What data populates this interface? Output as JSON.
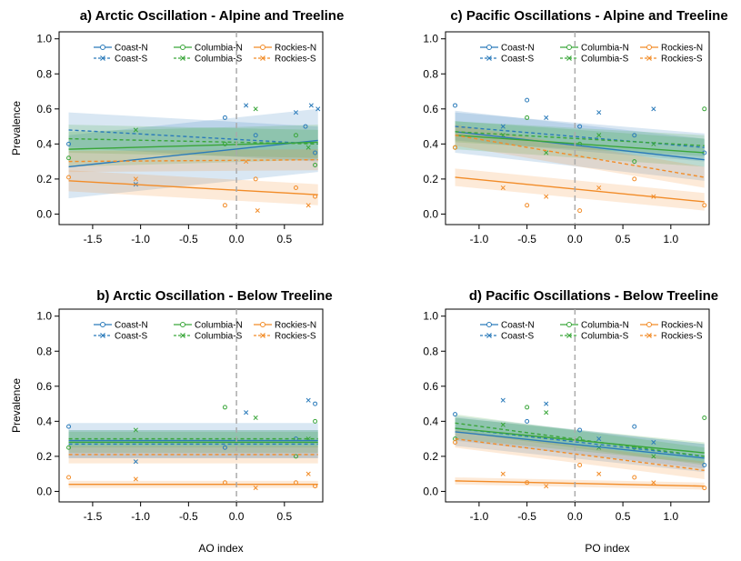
{
  "colors": {
    "coast": "#2b7bba",
    "columbia": "#3aa63a",
    "rockies": "#f28c28"
  },
  "legend": [
    {
      "key": "coast",
      "label_n": "Coast-N",
      "label_s": "Coast-S"
    },
    {
      "key": "columbia",
      "label_n": "Columbia-N",
      "label_s": "Columbia-S"
    },
    {
      "key": "rockies",
      "label_n": "Rockies-N",
      "label_s": "Rockies-S"
    }
  ],
  "chart_data": [
    {
      "type": "scatter",
      "title": "a) Arctic Oscillation - Alpine and Treeline",
      "xlabel": "",
      "ylabel": "Prevalence",
      "xlim": [
        -1.85,
        0.9
      ],
      "ylim": [
        0,
        1
      ],
      "xticks": [
        "-1.5",
        "-1.0",
        "-0.5",
        "0.0",
        "0.5"
      ],
      "yticks": [
        "0.0",
        "0.2",
        "0.4",
        "0.6",
        "0.8",
        "1.0"
      ],
      "vline": 0,
      "lines": [
        {
          "series": "coast",
          "kind": "N",
          "x": [
            -1.75,
            0.85
          ],
          "y": [
            0.27,
            0.42
          ],
          "band": 0.18
        },
        {
          "series": "coast",
          "kind": "S",
          "x": [
            -1.75,
            0.85
          ],
          "y": [
            0.48,
            0.4
          ],
          "band": 0.1
        },
        {
          "series": "columbia",
          "kind": "N",
          "x": [
            -1.75,
            0.85
          ],
          "y": [
            0.37,
            0.41
          ],
          "band": 0.1
        },
        {
          "series": "columbia",
          "kind": "S",
          "x": [
            -1.75,
            0.85
          ],
          "y": [
            0.43,
            0.4
          ],
          "band": 0.08
        },
        {
          "series": "rockies",
          "kind": "N",
          "x": [
            -1.75,
            0.85
          ],
          "y": [
            0.19,
            0.11
          ],
          "band": 0.06
        },
        {
          "series": "rockies",
          "kind": "S",
          "x": [
            -1.75,
            0.85
          ],
          "y": [
            0.3,
            0.31
          ],
          "band": 0.06
        }
      ],
      "points": [
        {
          "series": "coast",
          "x": [
            -1.75,
            -1.05,
            -0.12,
            0.1,
            0.2,
            0.62,
            0.72,
            0.78,
            0.82,
            0.85
          ],
          "y": [
            0.4,
            0.17,
            0.55,
            0.62,
            0.45,
            0.58,
            0.5,
            0.62,
            0.35,
            0.6
          ]
        },
        {
          "series": "columbia",
          "x": [
            -1.75,
            -1.05,
            -0.12,
            0.2,
            0.62,
            0.75,
            0.82
          ],
          "y": [
            0.32,
            0.48,
            0.4,
            0.6,
            0.45,
            0.38,
            0.28
          ]
        },
        {
          "series": "rockies",
          "x": [
            -1.75,
            -1.05,
            -0.12,
            0.1,
            0.2,
            0.22,
            0.62,
            0.75,
            0.82
          ],
          "y": [
            0.21,
            0.2,
            0.05,
            0.3,
            0.2,
            0.02,
            0.15,
            0.05,
            0.1
          ]
        }
      ]
    },
    {
      "type": "scatter",
      "title": "c) Pacific Oscillations - Alpine and Treeline",
      "xlabel": "",
      "ylabel": "",
      "xlim": [
        -1.35,
        1.4
      ],
      "ylim": [
        0,
        1
      ],
      "xticks": [
        "-1.0",
        "-0.5",
        "0.0",
        "0.5",
        "1.0"
      ],
      "yticks": [
        "0.0",
        "0.2",
        "0.4",
        "0.6",
        "0.8",
        "1.0"
      ],
      "vline": 0,
      "lines": [
        {
          "series": "coast",
          "kind": "N",
          "x": [
            -1.25,
            1.35
          ],
          "y": [
            0.47,
            0.31
          ],
          "band": 0.12
        },
        {
          "series": "coast",
          "kind": "S",
          "x": [
            -1.25,
            1.35
          ],
          "y": [
            0.5,
            0.38
          ],
          "band": 0.08
        },
        {
          "series": "columbia",
          "kind": "N",
          "x": [
            -1.25,
            1.35
          ],
          "y": [
            0.45,
            0.35
          ],
          "band": 0.08
        },
        {
          "series": "columbia",
          "kind": "S",
          "x": [
            -1.25,
            1.35
          ],
          "y": [
            0.47,
            0.39
          ],
          "band": 0.06
        },
        {
          "series": "rockies",
          "kind": "N",
          "x": [
            -1.25,
            1.35
          ],
          "y": [
            0.21,
            0.07
          ],
          "band": 0.05
        },
        {
          "series": "rockies",
          "kind": "S",
          "x": [
            -1.25,
            1.35
          ],
          "y": [
            0.45,
            0.21
          ],
          "band": 0.06
        }
      ],
      "points": [
        {
          "series": "coast",
          "x": [
            -1.25,
            -0.75,
            -0.5,
            -0.3,
            0.05,
            0.25,
            0.62,
            0.82,
            1.35
          ],
          "y": [
            0.62,
            0.5,
            0.65,
            0.55,
            0.5,
            0.58,
            0.45,
            0.6,
            0.35
          ]
        },
        {
          "series": "columbia",
          "x": [
            -1.25,
            -0.75,
            -0.5,
            -0.3,
            0.05,
            0.25,
            0.62,
            0.82,
            1.35
          ],
          "y": [
            0.38,
            0.45,
            0.55,
            0.35,
            0.4,
            0.45,
            0.3,
            0.4,
            0.6
          ]
        },
        {
          "series": "rockies",
          "x": [
            -1.25,
            -0.75,
            -0.5,
            -0.3,
            0.05,
            0.25,
            0.62,
            0.82,
            1.35
          ],
          "y": [
            0.38,
            0.15,
            0.05,
            0.1,
            0.02,
            0.15,
            0.2,
            0.1,
            0.05
          ]
        }
      ]
    },
    {
      "type": "scatter",
      "title": "b) Arctic Oscillation - Below Treeline",
      "xlabel": "AO index",
      "ylabel": "Prevalence",
      "xlim": [
        -1.85,
        0.9
      ],
      "ylim": [
        0,
        1
      ],
      "xticks": [
        "-1.5",
        "-1.0",
        "-0.5",
        "0.0",
        "0.5"
      ],
      "yticks": [
        "0.0",
        "0.2",
        "0.4",
        "0.6",
        "0.8",
        "1.0"
      ],
      "vline": 0,
      "lines": [
        {
          "series": "coast",
          "kind": "N",
          "x": [
            -1.75,
            0.85
          ],
          "y": [
            0.29,
            0.29
          ],
          "band": 0.1
        },
        {
          "series": "coast",
          "kind": "S",
          "x": [
            -1.75,
            0.85
          ],
          "y": [
            0.27,
            0.27
          ],
          "band": 0.08
        },
        {
          "series": "columbia",
          "kind": "N",
          "x": [
            -1.75,
            0.85
          ],
          "y": [
            0.28,
            0.28
          ],
          "band": 0.06
        },
        {
          "series": "columbia",
          "kind": "S",
          "x": [
            -1.75,
            0.85
          ],
          "y": [
            0.3,
            0.3
          ],
          "band": 0.05
        },
        {
          "series": "rockies",
          "kind": "N",
          "x": [
            -1.75,
            0.85
          ],
          "y": [
            0.04,
            0.04
          ],
          "band": 0.02
        },
        {
          "series": "rockies",
          "kind": "S",
          "x": [
            -1.75,
            0.85
          ],
          "y": [
            0.21,
            0.21
          ],
          "band": 0.05
        }
      ],
      "points": [
        {
          "series": "coast",
          "x": [
            -1.75,
            -1.05,
            -0.12,
            0.1,
            0.62,
            0.75,
            0.82
          ],
          "y": [
            0.37,
            0.17,
            0.25,
            0.45,
            0.3,
            0.52,
            0.5
          ]
        },
        {
          "series": "columbia",
          "x": [
            -1.75,
            -1.05,
            -0.12,
            0.2,
            0.62,
            0.75,
            0.82
          ],
          "y": [
            0.25,
            0.35,
            0.48,
            0.42,
            0.2,
            0.3,
            0.4
          ]
        },
        {
          "series": "rockies",
          "x": [
            -1.75,
            -1.05,
            -0.12,
            0.2,
            0.62,
            0.75,
            0.82
          ],
          "y": [
            0.08,
            0.07,
            0.05,
            0.02,
            0.05,
            0.1,
            0.03
          ]
        }
      ]
    },
    {
      "type": "scatter",
      "title": "d) Pacific Oscillations - Below Treeline",
      "xlabel": "PO index",
      "ylabel": "",
      "xlim": [
        -1.35,
        1.4
      ],
      "ylim": [
        0,
        1
      ],
      "xticks": [
        "-1.0",
        "-0.5",
        "0.0",
        "0.5",
        "1.0"
      ],
      "yticks": [
        "0.0",
        "0.2",
        "0.4",
        "0.6",
        "0.8",
        "1.0"
      ],
      "vline": 0,
      "lines": [
        {
          "series": "coast",
          "kind": "N",
          "x": [
            -1.25,
            1.35
          ],
          "y": [
            0.34,
            0.19
          ],
          "band": 0.08
        },
        {
          "series": "coast",
          "kind": "S",
          "x": [
            -1.25,
            1.35
          ],
          "y": [
            0.36,
            0.2
          ],
          "band": 0.07
        },
        {
          "series": "columbia",
          "kind": "N",
          "x": [
            -1.25,
            1.35
          ],
          "y": [
            0.36,
            0.22
          ],
          "band": 0.06
        },
        {
          "series": "columbia",
          "kind": "S",
          "x": [
            -1.25,
            1.35
          ],
          "y": [
            0.39,
            0.2
          ],
          "band": 0.05
        },
        {
          "series": "rockies",
          "kind": "N",
          "x": [
            -1.25,
            1.35
          ],
          "y": [
            0.06,
            0.03
          ],
          "band": 0.02
        },
        {
          "series": "rockies",
          "kind": "S",
          "x": [
            -1.25,
            1.35
          ],
          "y": [
            0.3,
            0.12
          ],
          "band": 0.05
        }
      ],
      "points": [
        {
          "series": "coast",
          "x": [
            -1.25,
            -0.75,
            -0.5,
            -0.3,
            0.05,
            0.25,
            0.62,
            0.82,
            1.35
          ],
          "y": [
            0.44,
            0.52,
            0.4,
            0.5,
            0.35,
            0.3,
            0.37,
            0.28,
            0.15
          ]
        },
        {
          "series": "columbia",
          "x": [
            -1.25,
            -0.75,
            -0.5,
            -0.3,
            0.05,
            0.25,
            0.62,
            0.82,
            1.35
          ],
          "y": [
            0.3,
            0.38,
            0.48,
            0.45,
            0.3,
            0.25,
            0.25,
            0.2,
            0.42
          ]
        },
        {
          "series": "rockies",
          "x": [
            -1.25,
            -0.75,
            -0.5,
            -0.3,
            0.05,
            0.25,
            0.62,
            0.82,
            1.35
          ],
          "y": [
            0.28,
            0.1,
            0.05,
            0.03,
            0.15,
            0.1,
            0.08,
            0.05,
            0.02
          ]
        }
      ]
    }
  ]
}
